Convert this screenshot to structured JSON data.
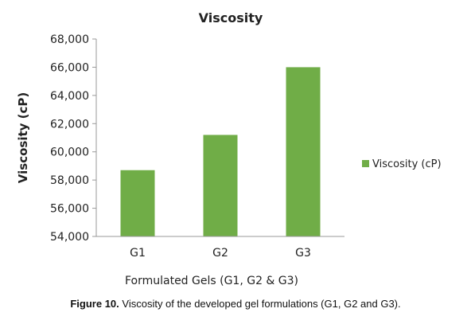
{
  "chart_data": {
    "type": "bar",
    "title": "Viscosity",
    "xlabel": "Formulated Gels (G1, G2 & G3)",
    "ylabel": "Viscosity (cP)",
    "categories": [
      "G1",
      "G2",
      "G3"
    ],
    "series": [
      {
        "name": "Viscosity (cP)",
        "values": [
          58700,
          61200,
          66000
        ],
        "color": "#70ad47"
      }
    ],
    "ylim": [
      54000,
      68000
    ],
    "yticks": [
      "54,000",
      "56,000",
      "58,000",
      "60,000",
      "62,000",
      "64,000",
      "66,000",
      "68,000"
    ],
    "ytick_values": [
      54000,
      56000,
      58000,
      60000,
      62000,
      64000,
      66000,
      68000
    ],
    "grid": false,
    "legend_position": "right"
  },
  "caption": {
    "label": "Figure 10.",
    "text": " Viscosity of the developed gel formulations (G1, G2 and G3)."
  }
}
